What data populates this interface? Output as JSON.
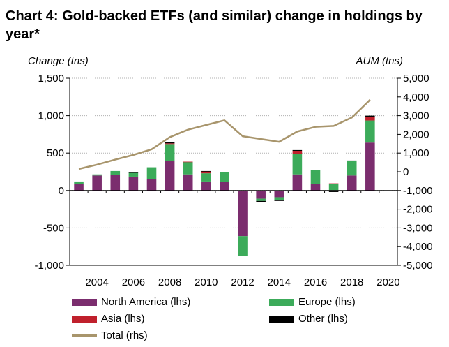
{
  "title": "Chart 4: Gold-backed ETFs (and similar) change in holdings by year*",
  "chart_data": {
    "type": "bar",
    "stacked": true,
    "title": "Chart 4: Gold-backed ETFs (and similar) change in holdings by year*",
    "ylabel_left": "Change (tns)",
    "ylabel_right": "AUM (tns)",
    "ylim_left": [
      -1000,
      1500
    ],
    "ylim_right": [
      -5000,
      5000
    ],
    "yticks_left": [
      "1,500",
      "1,000",
      "500",
      "0",
      "-500",
      "-1,000"
    ],
    "yticks_right": [
      "5,000",
      "4,000",
      "3,000",
      "2,000",
      "1,000",
      "0",
      "-1,000",
      "-2,000",
      "-3,000",
      "-4,000",
      "-5,000"
    ],
    "yticks_left_values": [
      1500,
      1000,
      500,
      0,
      -500,
      -1000
    ],
    "yticks_right_values": [
      5000,
      4000,
      3000,
      2000,
      1000,
      0,
      -1000,
      -2000,
      -3000,
      -4000,
      -5000
    ],
    "x_tick_labels": [
      "2004",
      "2006",
      "2008",
      "2010",
      "2012",
      "2014",
      "2016",
      "2018",
      "2020"
    ],
    "categories": [
      2003,
      2004,
      2005,
      2006,
      2007,
      2008,
      2009,
      2010,
      2011,
      2012,
      2013,
      2014,
      2015,
      2016,
      2017,
      2018,
      2019,
      2020
    ],
    "grid": true,
    "series": [
      {
        "name": "North America (lhs)",
        "color": "#7b2d6e",
        "values": [
          90,
          200,
          210,
          185,
          150,
          390,
          215,
          120,
          115,
          -610,
          -110,
          -90,
          215,
          90,
          5,
          200,
          640,
          0
        ]
      },
      {
        "name": "Europe (lhs)",
        "color": "#3cab5a",
        "values": [
          30,
          15,
          50,
          50,
          160,
          230,
          165,
          110,
          130,
          -260,
          -30,
          -40,
          275,
          185,
          85,
          190,
          295,
          0
        ]
      },
      {
        "name": "Asia (lhs)",
        "color": "#c0202c",
        "values": [
          0,
          0,
          0,
          0,
          0,
          10,
          5,
          25,
          5,
          0,
          0,
          0,
          40,
          0,
          5,
          0,
          50,
          0
        ]
      },
      {
        "name": "Other (lhs)",
        "color": "#000000",
        "values": [
          0,
          0,
          0,
          15,
          0,
          15,
          0,
          5,
          0,
          -5,
          -15,
          -10,
          10,
          0,
          -20,
          10,
          15,
          0
        ]
      },
      {
        "name": "Total (rhs)",
        "color": "#a8956c",
        "type": "line",
        "axis": "right",
        "values": [
          150,
          380,
          650,
          900,
          1200,
          1850,
          2250,
          2500,
          2750,
          1900,
          1750,
          1600,
          2150,
          2400,
          2450,
          2900,
          3850,
          null
        ]
      }
    ],
    "legend_placement": "bottom"
  },
  "legend": {
    "north_america": "North America (lhs)",
    "europe": "Europe (lhs)",
    "asia": "Asia (lhs)",
    "other": "Other (lhs)",
    "total": "Total (rhs)"
  }
}
